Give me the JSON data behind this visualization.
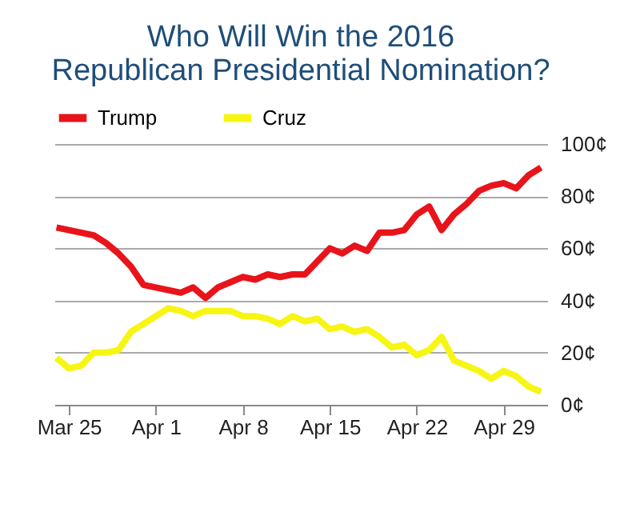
{
  "chart_data": {
    "type": "line",
    "title": "Who Will Win the 2016\nRepublican Presidential Nomination?",
    "x": [
      "2016-03-24",
      "2016-03-25",
      "2016-03-26",
      "2016-03-27",
      "2016-03-28",
      "2016-03-29",
      "2016-03-30",
      "2016-03-31",
      "2016-04-01",
      "2016-04-02",
      "2016-04-03",
      "2016-04-04",
      "2016-04-05",
      "2016-04-06",
      "2016-04-07",
      "2016-04-08",
      "2016-04-09",
      "2016-04-10",
      "2016-04-11",
      "2016-04-12",
      "2016-04-13",
      "2016-04-14",
      "2016-04-15",
      "2016-04-16",
      "2016-04-17",
      "2016-04-18",
      "2016-04-19",
      "2016-04-20",
      "2016-04-21",
      "2016-04-22",
      "2016-04-23",
      "2016-04-24",
      "2016-04-25",
      "2016-04-26",
      "2016-04-27",
      "2016-04-28",
      "2016-04-29",
      "2016-04-30",
      "2016-05-01",
      "2016-05-02"
    ],
    "series": [
      {
        "name": "Trump",
        "color": "#e8141b",
        "values": [
          68,
          67,
          66,
          65,
          62,
          58,
          53,
          46,
          45,
          44,
          43,
          45,
          41,
          45,
          47,
          49,
          48,
          50,
          49,
          50,
          50,
          55,
          60,
          58,
          61,
          59,
          66,
          66,
          67,
          73,
          76,
          67,
          73,
          77,
          82,
          84,
          85,
          83,
          88,
          91
        ]
      },
      {
        "name": "Cruz",
        "color": "#f7f514",
        "values": [
          18,
          14,
          15,
          20,
          20,
          21,
          28,
          31,
          34,
          37,
          36,
          34,
          36,
          36,
          36,
          34,
          34,
          33,
          31,
          34,
          32,
          33,
          29,
          30,
          28,
          29,
          26,
          22,
          23,
          19,
          21,
          26,
          17,
          15,
          13,
          10,
          13,
          11,
          7,
          5
        ]
      }
    ],
    "xlim": [
      "2016-03-23T20:00",
      "2016-05-02T12:00"
    ],
    "xticks": [
      {
        "value": "2016-03-25",
        "label": "Mar 25"
      },
      {
        "value": "2016-04-01",
        "label": "Apr 1"
      },
      {
        "value": "2016-04-08",
        "label": "Apr 8"
      },
      {
        "value": "2016-04-15",
        "label": "Apr 15"
      },
      {
        "value": "2016-04-22",
        "label": "Apr 22"
      },
      {
        "value": "2016-04-29",
        "label": "Apr 29"
      }
    ],
    "ylim": [
      0,
      100
    ],
    "yticks": [
      {
        "value": 0,
        "label": "0¢"
      },
      {
        "value": 20,
        "label": "20¢"
      },
      {
        "value": 40,
        "label": "40¢"
      },
      {
        "value": 60,
        "label": "60¢"
      },
      {
        "value": 80,
        "label": "80¢"
      },
      {
        "value": 100,
        "label": "100¢"
      }
    ],
    "grid": "y",
    "legend": "top",
    "marker": "none",
    "line_style": "solid"
  }
}
